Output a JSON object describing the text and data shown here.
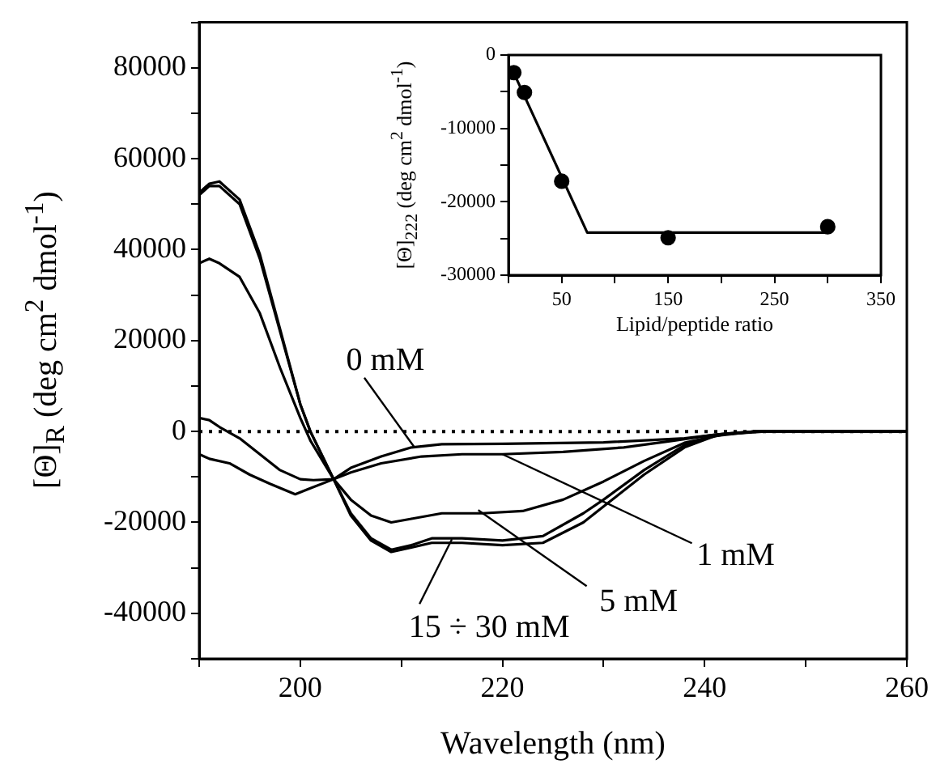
{
  "chart_data": [
    {
      "type": "line",
      "xlabel": "Wavelength (nm)",
      "ylabel": "[Θ]$_{R}$ (deg cm$^{2}$ dmol$^{-1}$)",
      "xlim": [
        190,
        260
      ],
      "xticks": [
        {
          "value": 190,
          "label": null
        },
        200,
        {
          "value": 210,
          "label": null
        },
        220,
        {
          "value": 230,
          "label": null
        },
        240,
        {
          "value": 250,
          "label": null
        },
        260
      ],
      "ylim": [
        -50000,
        90000
      ],
      "yticks": [
        {
          "value": -50000,
          "label": null
        },
        -40000,
        {
          "value": -30000,
          "label": null
        },
        -20000,
        {
          "value": -10000,
          "label": null
        },
        0,
        {
          "value": 10000,
          "label": null
        },
        20000,
        {
          "value": 30000,
          "label": null
        },
        40000,
        {
          "value": 50000,
          "label": null
        },
        60000,
        {
          "value": 70000,
          "label": null
        },
        80000,
        {
          "value": 90000,
          "label": null
        }
      ],
      "series": [
        {
          "color": "#000000",
          "x": [
            190,
            191,
            192,
            194,
            196,
            198,
            200,
            201.3,
            203.3,
            205,
            208,
            211,
            214,
            220,
            230,
            238,
            242,
            245,
            260
          ],
          "values": [
            3000,
            2500,
            1000,
            -1500,
            -5000,
            -8500,
            -10500,
            -10700,
            -10500,
            -8000,
            -5500,
            -3500,
            -2800,
            -2700,
            -2400,
            -1500,
            -500,
            0,
            0
          ]
        },
        {
          "color": "#000000",
          "x": [
            190,
            191,
            193,
            195,
            197,
            199.5,
            201,
            203.3,
            205,
            208,
            212,
            216,
            220,
            226,
            232,
            237,
            241,
            245,
            260
          ],
          "values": [
            -5000,
            -6000,
            -7000,
            -9500,
            -11500,
            -13800,
            -12500,
            -10500,
            -9000,
            -7000,
            -5500,
            -5000,
            -5000,
            -4500,
            -3500,
            -2000,
            -700,
            0,
            0
          ]
        },
        {
          "color": "#000000",
          "x": [
            190,
            191,
            192,
            194,
            196,
            198,
            200,
            201,
            203.3,
            205,
            207,
            209,
            211,
            214,
            218,
            222,
            226,
            230,
            234,
            238,
            242,
            246,
            260
          ],
          "values": [
            37000,
            38000,
            37000,
            34000,
            26000,
            14000,
            3000,
            -2000,
            -10500,
            -15000,
            -18500,
            -20000,
            -19200,
            -18000,
            -18000,
            -17500,
            -15000,
            -11000,
            -6500,
            -2500,
            -600,
            0,
            0
          ]
        },
        {
          "color": "#000000",
          "x": [
            190,
            191,
            192,
            194,
            196,
            198,
            200,
            201,
            203.3,
            205,
            207,
            209,
            211,
            213,
            216,
            220,
            224,
            228,
            230,
            234,
            238,
            241,
            245,
            260
          ],
          "values": [
            52000,
            54000,
            54000,
            50000,
            38000,
            22000,
            6000,
            0,
            -10500,
            -18000,
            -23500,
            -26000,
            -25000,
            -23500,
            -23500,
            -24000,
            -23000,
            -18000,
            -15000,
            -8500,
            -3000,
            -800,
            0,
            0
          ]
        },
        {
          "color": "#000000",
          "x": [
            190,
            191,
            192,
            194,
            196,
            198,
            200,
            201,
            203.3,
            205,
            207,
            209,
            211,
            213,
            216,
            220,
            224,
            228,
            230,
            234,
            238,
            241,
            245,
            260
          ],
          "values": [
            52500,
            54500,
            55000,
            51000,
            39000,
            22500,
            6000,
            0,
            -10500,
            -18500,
            -24000,
            -26500,
            -25500,
            -24500,
            -24500,
            -25000,
            -24500,
            -20000,
            -16500,
            -9500,
            -3500,
            -1000,
            0,
            0
          ]
        }
      ],
      "ref_lines": [
        {
          "axis": "y",
          "value": 0,
          "color": "#000000",
          "line_style": "dotted"
        }
      ],
      "annotations": [
        {
          "text": "0 mM",
          "x": 211.3,
          "y": -3500
        },
        {
          "text": "1 mM",
          "x": 220,
          "y": -5000
        },
        {
          "text": "5 mM",
          "x": 217.6,
          "y": -17300
        },
        {
          "text": "15 ÷ 30 mM",
          "x": 215,
          "y": -23700
        }
      ]
    },
    {
      "type": "scatter",
      "xlabel": "Lipid/peptide ratio",
      "ylabel": "[Θ]$_{222}$ (deg cm$^{2}$ dmol$^{-1}$)",
      "xlim": [
        0,
        350
      ],
      "xticks": [
        {
          "value": 0,
          "label": null
        },
        50,
        {
          "value": 100,
          "label": null
        },
        150,
        {
          "value": 200,
          "label": null
        },
        250,
        {
          "value": 300,
          "label": null
        },
        350
      ],
      "ylim": [
        -30000,
        0
      ],
      "yticks": [
        -30000,
        {
          "value": -25000,
          "label": null
        },
        -20000,
        {
          "value": -15000,
          "label": null
        },
        -10000,
        {
          "value": -5000,
          "label": null
        },
        0
      ],
      "series": [
        {
          "type": "scatter",
          "color": "#000000",
          "marker": "circle",
          "x": [
            5,
            15,
            50,
            150,
            300
          ],
          "values": [
            -2400,
            -5100,
            -17200,
            -24900,
            -23400
          ]
        },
        {
          "type": "line",
          "color": "#000000",
          "x": [
            3,
            74,
            300
          ],
          "values": [
            -1800,
            -24200,
            -24200
          ]
        }
      ]
    }
  ]
}
